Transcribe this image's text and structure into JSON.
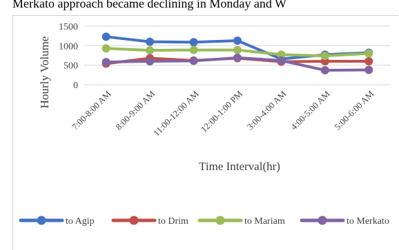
{
  "banner_text": "Merkato approach became declining in Monday and W",
  "chart_data": {
    "type": "line",
    "title": "",
    "xlabel": "Time Interval(hr)",
    "ylabel": "Hourly Volume",
    "ylim": [
      0,
      1500
    ],
    "yticks": [
      "0",
      "500",
      "1000",
      "1500"
    ],
    "grid": true,
    "legend_position": "bottom",
    "categories": [
      "7:00-8:00 AM",
      "8:00-9:00 AM",
      "11:00-12:00 AM",
      "12:00-1:00 PM",
      "3:00-4:00 AM",
      "4:00-5:00 AM",
      "5:00-6:00 AM"
    ],
    "series": [
      {
        "name": "to Agip",
        "color": "#4472C4",
        "values": [
          1230,
          1100,
          1090,
          1130,
          660,
          770,
          820
        ]
      },
      {
        "name": "to Drim",
        "color": "#C0504D",
        "values": [
          540,
          680,
          620,
          680,
          590,
          600,
          600
        ]
      },
      {
        "name": "to Mariam",
        "color": "#9BBB59",
        "values": [
          930,
          880,
          890,
          890,
          770,
          740,
          800
        ]
      },
      {
        "name": "to Merkato",
        "color": "#8064A2",
        "values": [
          580,
          600,
          610,
          690,
          620,
          370,
          380
        ]
      }
    ]
  }
}
